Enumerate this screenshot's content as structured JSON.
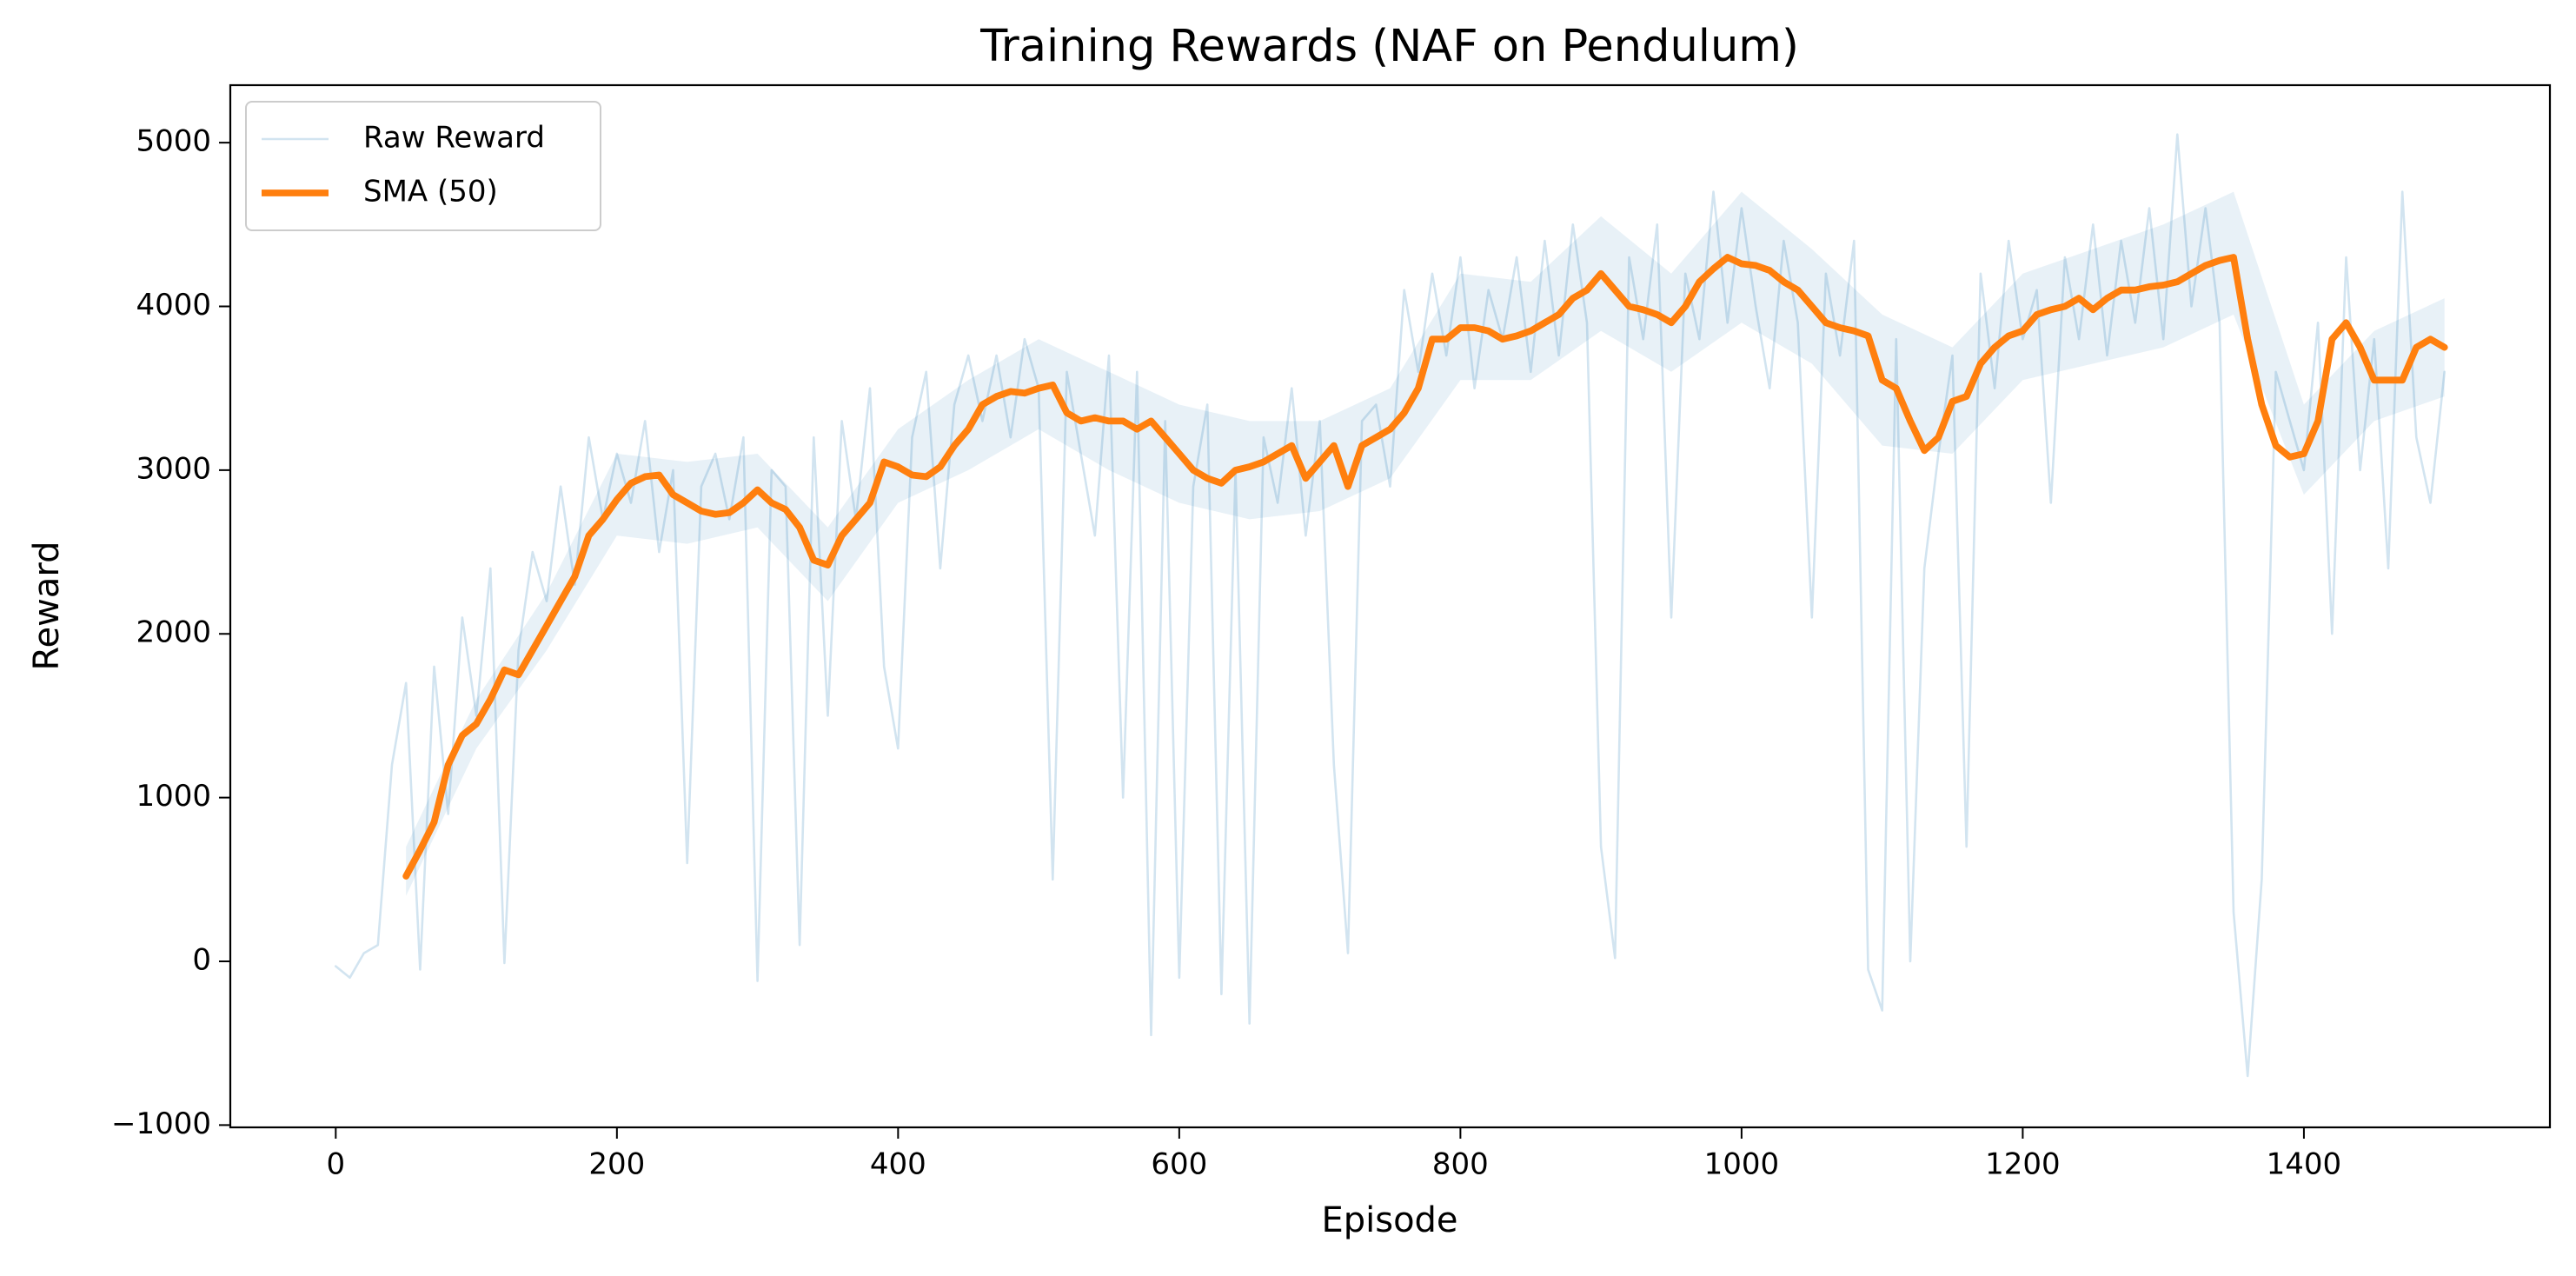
{
  "chart_data": {
    "type": "line",
    "title": "Training Rewards (NAF on Pendulum)",
    "x_label": "Episode",
    "y_label": "Reward",
    "xlim": [
      -75,
      1575
    ],
    "ylim": [
      -1014,
      5351
    ],
    "xticks": [
      0,
      200,
      400,
      600,
      800,
      1000,
      1200,
      1400
    ],
    "yticks": [
      {
        "value": -1000,
        "label": "−1000"
      },
      0,
      1000,
      2000,
      3000,
      4000,
      5000
    ],
    "legend": "upper left",
    "band": {
      "color": "#1f77b4",
      "alpha": 0.1,
      "x": [
        50,
        100,
        150,
        200,
        250,
        300,
        350,
        400,
        450,
        500,
        550,
        600,
        650,
        700,
        750,
        800,
        850,
        900,
        950,
        1000,
        1050,
        1100,
        1150,
        1200,
        1250,
        1300,
        1350,
        1400,
        1450,
        1500
      ],
      "lower": [
        400,
        1300,
        1900,
        2600,
        2550,
        2650,
        2200,
        2800,
        3000,
        3250,
        3000,
        2800,
        2700,
        2750,
        2950,
        3550,
        3550,
        3850,
        3600,
        3900,
        3650,
        3150,
        3100,
        3550,
        3650,
        3750,
        3950,
        2850,
        3300,
        3450
      ],
      "upper": [
        700,
        1600,
        2250,
        3100,
        3050,
        3100,
        2650,
        3250,
        3550,
        3800,
        3600,
        3400,
        3300,
        3300,
        3500,
        4200,
        4150,
        4550,
        4200,
        4700,
        4350,
        3950,
        3750,
        4200,
        4350,
        4500,
        4700,
        3400,
        3850,
        4050
      ]
    },
    "series": [
      {
        "name": "Raw Reward",
        "color": "#1f77b4",
        "alpha": 0.2,
        "width": 1,
        "x": [
          0,
          10,
          20,
          30,
          40,
          50,
          60,
          70,
          80,
          90,
          100,
          110,
          120,
          130,
          140,
          150,
          160,
          170,
          180,
          190,
          200,
          210,
          220,
          230,
          240,
          250,
          260,
          270,
          280,
          290,
          300,
          310,
          320,
          330,
          340,
          350,
          360,
          370,
          380,
          390,
          400,
          410,
          420,
          430,
          440,
          450,
          460,
          470,
          480,
          490,
          500,
          510,
          520,
          530,
          540,
          550,
          560,
          570,
          580,
          590,
          600,
          610,
          620,
          630,
          640,
          650,
          660,
          670,
          680,
          690,
          700,
          710,
          720,
          730,
          740,
          750,
          760,
          770,
          780,
          790,
          800,
          810,
          820,
          830,
          840,
          850,
          860,
          870,
          880,
          890,
          900,
          910,
          920,
          930,
          940,
          950,
          960,
          970,
          980,
          990,
          1000,
          1010,
          1020,
          1030,
          1040,
          1050,
          1060,
          1070,
          1080,
          1090,
          1100,
          1110,
          1120,
          1130,
          1140,
          1150,
          1160,
          1170,
          1180,
          1190,
          1200,
          1210,
          1220,
          1230,
          1240,
          1250,
          1260,
          1270,
          1280,
          1290,
          1300,
          1310,
          1320,
          1330,
          1340,
          1350,
          1360,
          1370,
          1380,
          1390,
          1400,
          1410,
          1420,
          1430,
          1440,
          1450,
          1460,
          1470,
          1480,
          1490,
          1500
        ],
        "values": [
          -30,
          -100,
          50,
          100,
          1200,
          1700,
          -50,
          1800,
          900,
          2100,
          1500,
          2400,
          -10,
          1900,
          2500,
          2200,
          2900,
          2300,
          3200,
          2700,
          3100,
          2800,
          3300,
          2500,
          3000,
          600,
          2900,
          3100,
          2700,
          3200,
          -120,
          3000,
          2900,
          100,
          3200,
          1500,
          3300,
          2700,
          3500,
          1800,
          1300,
          3200,
          3600,
          2400,
          3400,
          3700,
          3300,
          3700,
          3200,
          3800,
          3500,
          500,
          3600,
          3100,
          2600,
          3700,
          1000,
          3600,
          -450,
          3300,
          -100,
          2900,
          3400,
          -200,
          3000,
          -380,
          3200,
          2800,
          3500,
          2600,
          3300,
          1200,
          50,
          3300,
          3400,
          2900,
          4100,
          3600,
          4200,
          3700,
          4300,
          3500,
          4100,
          3800,
          4300,
          3600,
          4400,
          3700,
          4500,
          3900,
          700,
          20,
          4300,
          3800,
          4500,
          2100,
          4200,
          3800,
          4700,
          3900,
          4600,
          4000,
          3500,
          4400,
          3900,
          2100,
          4200,
          3700,
          4400,
          -50,
          -300,
          3800,
          0,
          2400,
          3100,
          3700,
          700,
          4200,
          3500,
          4400,
          3800,
          4100,
          2800,
          4300,
          3800,
          4500,
          3700,
          4400,
          3900,
          4600,
          3800,
          5050,
          4000,
          4600,
          3900,
          300,
          -700,
          500,
          3600,
          3300,
          3000,
          3900,
          2000,
          4300,
          3000,
          3800,
          2400,
          4700,
          3200,
          2800,
          3600
        ]
      },
      {
        "name": "SMA (50)",
        "color": "#ff7f0e",
        "alpha": 1,
        "width": 3,
        "x": [
          50,
          60,
          70,
          80,
          90,
          100,
          110,
          120,
          130,
          140,
          150,
          160,
          170,
          180,
          190,
          200,
          210,
          220,
          230,
          240,
          250,
          260,
          270,
          280,
          290,
          300,
          310,
          320,
          330,
          340,
          350,
          360,
          370,
          380,
          390,
          400,
          410,
          420,
          430,
          440,
          450,
          460,
          470,
          480,
          490,
          500,
          510,
          520,
          530,
          540,
          550,
          560,
          570,
          580,
          590,
          600,
          610,
          620,
          630,
          640,
          650,
          660,
          670,
          680,
          690,
          700,
          710,
          720,
          730,
          740,
          750,
          760,
          770,
          780,
          790,
          800,
          810,
          820,
          830,
          840,
          850,
          860,
          870,
          880,
          890,
          900,
          910,
          920,
          930,
          940,
          950,
          960,
          970,
          980,
          990,
          1000,
          1010,
          1020,
          1030,
          1040,
          1050,
          1060,
          1070,
          1080,
          1090,
          1100,
          1110,
          1120,
          1130,
          1140,
          1150,
          1160,
          1170,
          1180,
          1190,
          1200,
          1210,
          1220,
          1230,
          1240,
          1250,
          1260,
          1270,
          1280,
          1290,
          1300,
          1310,
          1320,
          1330,
          1340,
          1350,
          1360,
          1370,
          1380,
          1390,
          1400,
          1410,
          1420,
          1430,
          1440,
          1450,
          1460,
          1470,
          1480,
          1490,
          1500
        ],
        "values": [
          520,
          680,
          850,
          1200,
          1380,
          1450,
          1600,
          1780,
          1750,
          1900,
          2050,
          2200,
          2350,
          2600,
          2700,
          2820,
          2920,
          2960,
          2970,
          2850,
          2800,
          2750,
          2730,
          2740,
          2800,
          2880,
          2800,
          2760,
          2650,
          2450,
          2420,
          2600,
          2700,
          2800,
          3050,
          3020,
          2970,
          2960,
          3020,
          3150,
          3250,
          3400,
          3450,
          3480,
          3470,
          3500,
          3520,
          3350,
          3300,
          3320,
          3300,
          3300,
          3250,
          3300,
          3200,
          3100,
          3000,
          2950,
          2920,
          3000,
          3020,
          3050,
          3100,
          3150,
          2950,
          3050,
          3150,
          2900,
          3150,
          3200,
          3250,
          3350,
          3500,
          3800,
          3800,
          3870,
          3870,
          3850,
          3800,
          3820,
          3850,
          3900,
          3950,
          4050,
          4100,
          4200,
          4100,
          4000,
          3980,
          3950,
          3900,
          4000,
          4150,
          4230,
          4300,
          4260,
          4250,
          4220,
          4150,
          4100,
          4000,
          3900,
          3870,
          3850,
          3820,
          3550,
          3500,
          3300,
          3120,
          3200,
          3420,
          3450,
          3650,
          3750,
          3820,
          3850,
          3950,
          3980,
          4000,
          4050,
          3980,
          4050,
          4100,
          4100,
          4120,
          4130,
          4150,
          4200,
          4250,
          4280,
          4300,
          3800,
          3400,
          3150,
          3080,
          3100,
          3300,
          3800,
          3900,
          3750,
          3550,
          3550,
          3550,
          3750,
          3800,
          3750
        ]
      }
    ]
  }
}
